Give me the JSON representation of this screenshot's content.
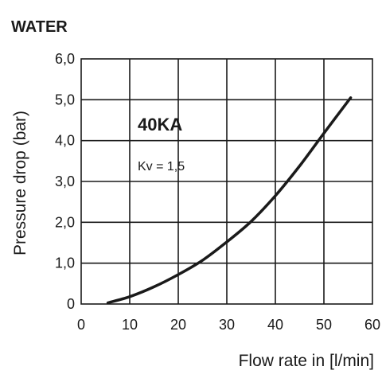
{
  "chart_data": {
    "type": "line",
    "title": "WATER",
    "xlabel": "Flow rate in [l/min]",
    "ylabel": "Pressure drop (bar)",
    "xlim": [
      0,
      60
    ],
    "ylim": [
      0,
      6
    ],
    "x_ticks": [
      0,
      10,
      20,
      30,
      40,
      50,
      60
    ],
    "x_tick_labels": [
      "0",
      "10",
      "20",
      "30",
      "40",
      "50",
      "60"
    ],
    "y_ticks": [
      0,
      1,
      2,
      3,
      4,
      5,
      6
    ],
    "y_tick_labels": [
      "0",
      "1,0",
      "2,0",
      "3,0",
      "4,0",
      "5,0",
      "6,0"
    ],
    "grid": true,
    "annotations": [
      {
        "text": "40KA",
        "style": "bold"
      },
      {
        "text": "Kv = 1,5",
        "style": "normal"
      }
    ],
    "series": [
      {
        "x": [
          5.5,
          10,
          15,
          20,
          25,
          30,
          35,
          40,
          45,
          50,
          55.5
        ],
        "y": [
          0.03,
          0.18,
          0.42,
          0.72,
          1.07,
          1.52,
          2.02,
          2.65,
          3.38,
          4.18,
          5.05
        ]
      }
    ]
  }
}
